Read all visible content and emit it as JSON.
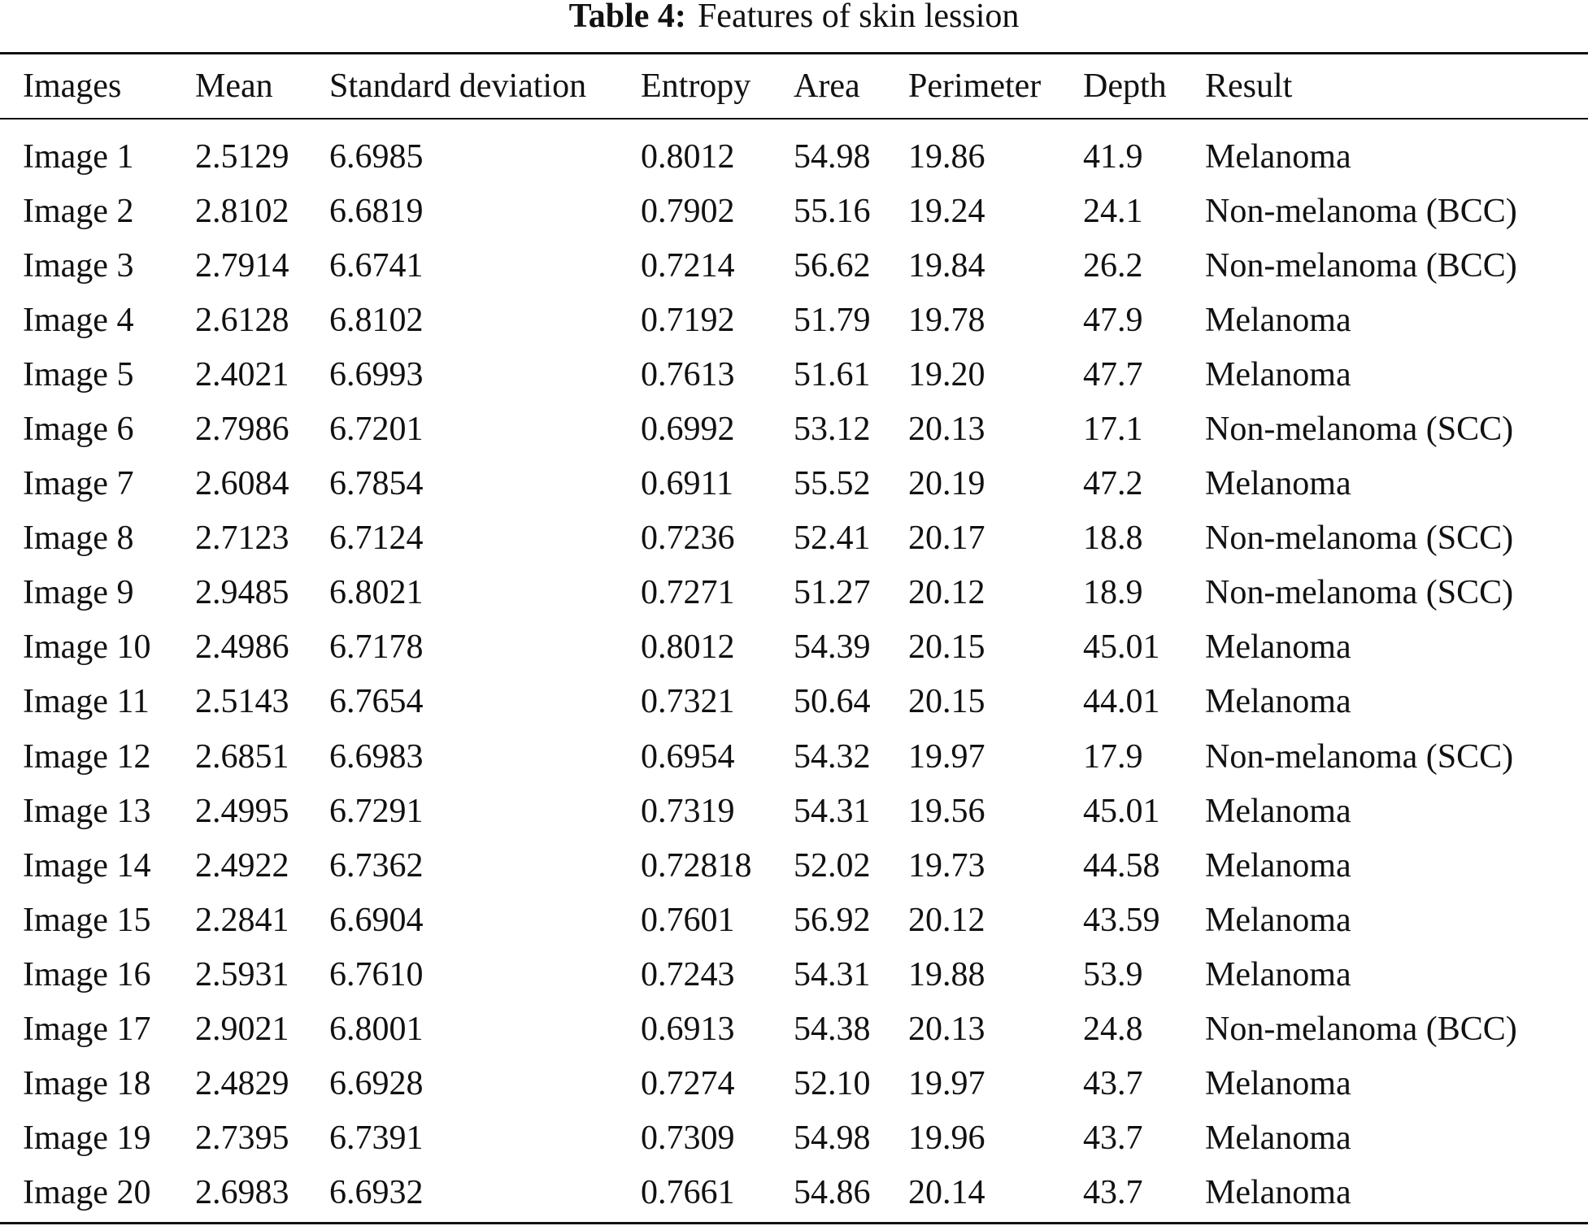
{
  "caption": {
    "label": "Table 4:",
    "title": "Features of skin lession"
  },
  "table": {
    "headers": [
      "Images",
      "Mean",
      "Standard deviation",
      "Entropy",
      "Area",
      "Perimeter",
      "Depth",
      "Result"
    ],
    "rows": [
      [
        "Image 1",
        "2.5129",
        "6.6985",
        "0.8012",
        "54.98",
        "19.86",
        "41.9",
        "Melanoma"
      ],
      [
        "Image 2",
        "2.8102",
        "6.6819",
        "0.7902",
        "55.16",
        "19.24",
        "24.1",
        "Non-melanoma (BCC)"
      ],
      [
        "Image 3",
        "2.7914",
        "6.6741",
        "0.7214",
        "56.62",
        "19.84",
        "26.2",
        "Non-melanoma (BCC)"
      ],
      [
        "Image 4",
        "2.6128",
        "6.8102",
        "0.7192",
        "51.79",
        "19.78",
        "47.9",
        "Melanoma"
      ],
      [
        "Image 5",
        "2.4021",
        "6.6993",
        "0.7613",
        "51.61",
        "19.20",
        "47.7",
        "Melanoma"
      ],
      [
        "Image 6",
        "2.7986",
        "6.7201",
        "0.6992",
        "53.12",
        "20.13",
        "17.1",
        "Non-melanoma (SCC)"
      ],
      [
        "Image 7",
        "2.6084",
        "6.7854",
        "0.6911",
        "55.52",
        "20.19",
        "47.2",
        "Melanoma"
      ],
      [
        "Image 8",
        "2.7123",
        "6.7124",
        "0.7236",
        "52.41",
        "20.17",
        "18.8",
        "Non-melanoma (SCC)"
      ],
      [
        "Image 9",
        "2.9485",
        "6.8021",
        "0.7271",
        "51.27",
        "20.12",
        "18.9",
        "Non-melanoma (SCC)"
      ],
      [
        "Image 10",
        "2.4986",
        "6.7178",
        "0.8012",
        "54.39",
        "20.15",
        "45.01",
        "Melanoma"
      ],
      [
        "Image 11",
        "2.5143",
        "6.7654",
        "0.7321",
        "50.64",
        "20.15",
        "44.01",
        "Melanoma"
      ],
      [
        "Image 12",
        "2.6851",
        "6.6983",
        "0.6954",
        "54.32",
        "19.97",
        "17.9",
        "Non-melanoma (SCC)"
      ],
      [
        "Image 13",
        "2.4995",
        "6.7291",
        "0.7319",
        "54.31",
        "19.56",
        "45.01",
        "Melanoma"
      ],
      [
        "Image 14",
        "2.4922",
        "6.7362",
        "0.72818",
        "52.02",
        "19.73",
        "44.58",
        "Melanoma"
      ],
      [
        "Image 15",
        "2.2841",
        "6.6904",
        "0.7601",
        "56.92",
        "20.12",
        "43.59",
        "Melanoma"
      ],
      [
        "Image 16",
        "2.5931",
        "6.7610",
        "0.7243",
        "54.31",
        "19.88",
        "53.9",
        "Melanoma"
      ],
      [
        "Image 17",
        "2.9021",
        "6.8001",
        "0.6913",
        "54.38",
        "20.13",
        "24.8",
        "Non-melanoma (BCC)"
      ],
      [
        "Image 18",
        "2.4829",
        "6.6928",
        "0.7274",
        "52.10",
        "19.97",
        "43.7",
        "Melanoma"
      ],
      [
        "Image 19",
        "2.7395",
        "6.7391",
        "0.7309",
        "54.98",
        "19.96",
        "43.7",
        "Melanoma"
      ],
      [
        "Image 20",
        "2.6983",
        "6.6932",
        "0.7661",
        "54.86",
        "20.14",
        "43.7",
        "Melanoma"
      ]
    ]
  }
}
